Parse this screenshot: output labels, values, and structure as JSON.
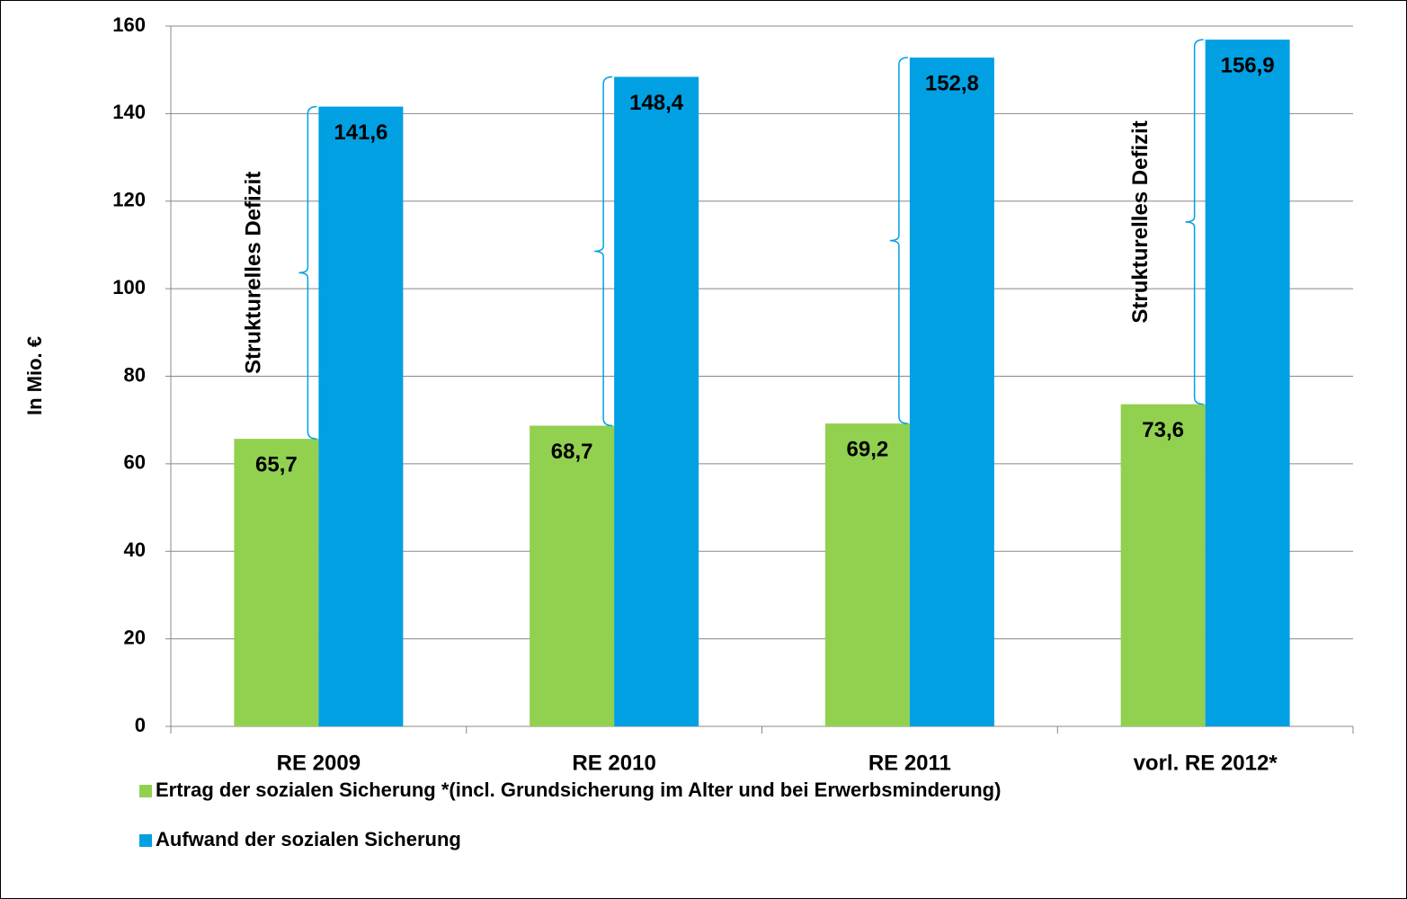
{
  "chart_data": {
    "type": "bar",
    "ylabel": "In Mio. €",
    "categories": [
      "RE 2009",
      "RE 2010",
      "RE 2011",
      "vorl. RE 2012*"
    ],
    "series": [
      {
        "name": "Ertrag der sozialen Sicherung *(incl. Grundsicherung im Alter und bei Erwerbsminderung)",
        "color": "#92d050",
        "values": [
          65.7,
          68.7,
          69.2,
          73.6
        ],
        "value_labels": [
          "65,7",
          "68,7",
          "69,2",
          "73,6"
        ]
      },
      {
        "name": "Aufwand der sozialen Sicherung",
        "color": "#00a0e3",
        "values": [
          141.6,
          148.4,
          152.8,
          156.9
        ],
        "value_labels": [
          "141,6",
          "148,4",
          "152,8",
          "156,9"
        ]
      }
    ],
    "annotations": [
      {
        "text": "Strukturelles Defizit",
        "category": "RE 2009"
      },
      {
        "text": "Strukturelles Defizit",
        "category": "vorl. RE 2012*"
      }
    ],
    "ylim": [
      0,
      160
    ],
    "yticks": [
      0,
      20,
      40,
      60,
      80,
      100,
      120,
      140,
      160
    ],
    "grid": true
  }
}
